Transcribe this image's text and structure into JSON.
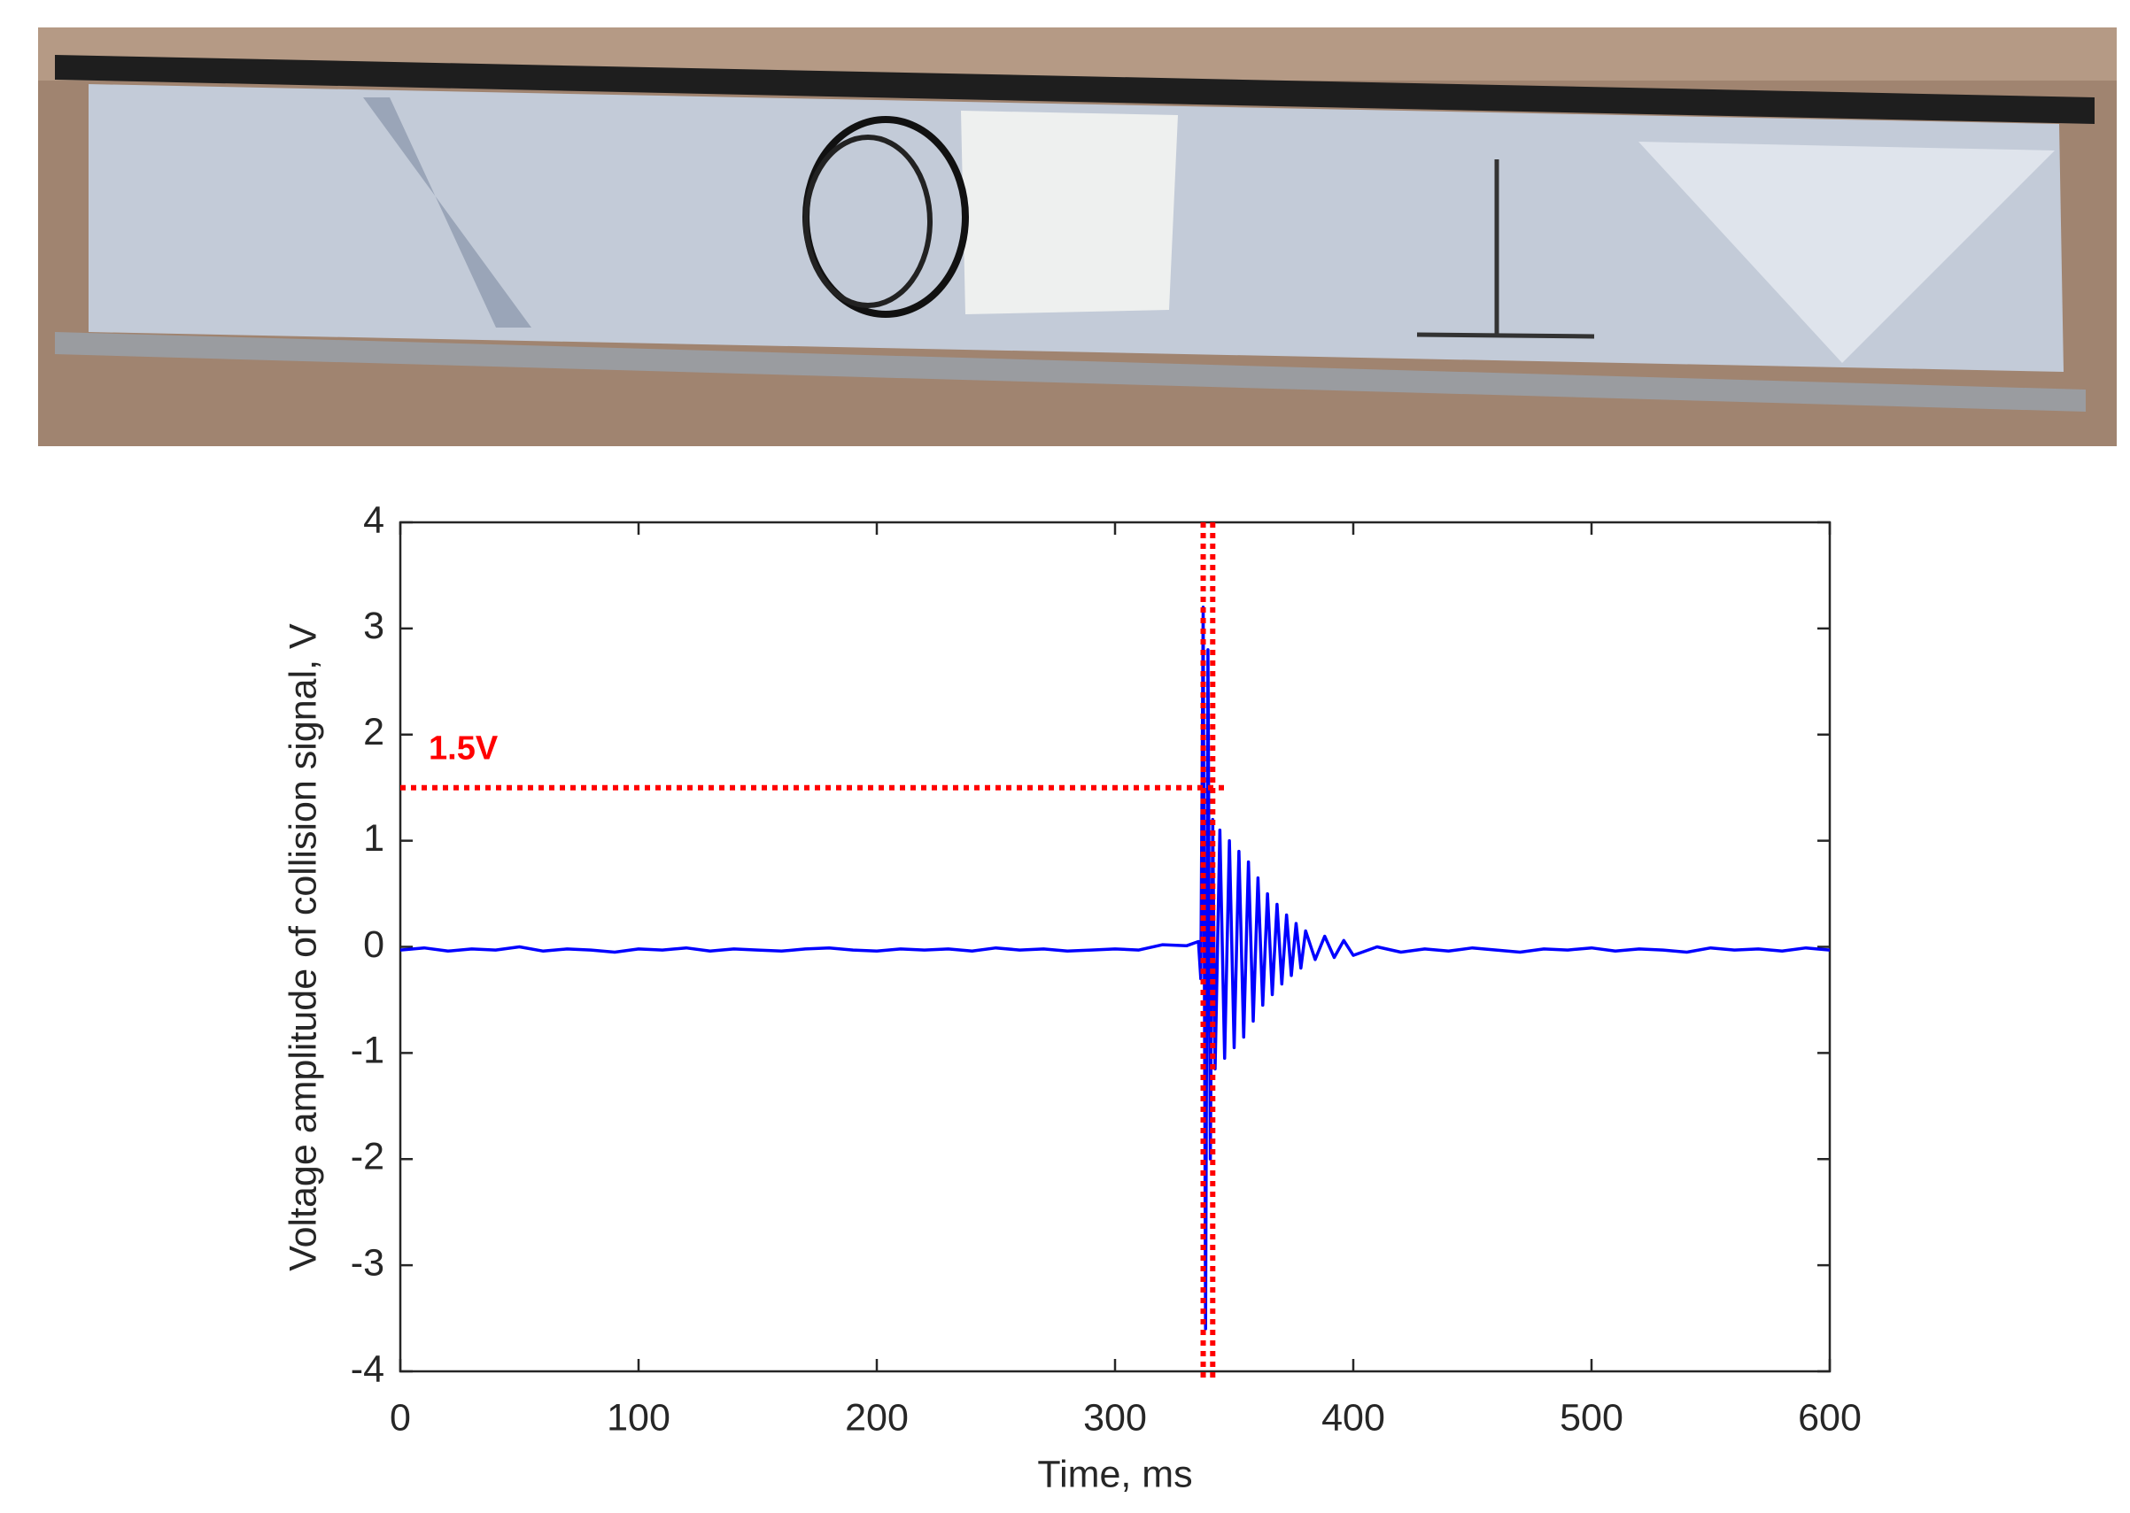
{
  "chart_data": {
    "type": "line",
    "xlabel": "Time, ms",
    "ylabel": "Voltage amplitude of  collision signal, V",
    "color": "#0000ff",
    "x": [
      0,
      10,
      20,
      30,
      40,
      50,
      60,
      70,
      80,
      90,
      100,
      110,
      120,
      130,
      140,
      150,
      160,
      170,
      180,
      190,
      200,
      210,
      220,
      230,
      240,
      250,
      260,
      270,
      280,
      290,
      300,
      310,
      320,
      330,
      335,
      336,
      337,
      338,
      339,
      340,
      341,
      342,
      344,
      346,
      348,
      350,
      352,
      354,
      356,
      358,
      360,
      362,
      364,
      366,
      368,
      370,
      372,
      374,
      376,
      378,
      380,
      384,
      388,
      392,
      396,
      400,
      410,
      420,
      430,
      440,
      450,
      460,
      470,
      480,
      490,
      500,
      510,
      520,
      530,
      540,
      550,
      560,
      570,
      580,
      590,
      600
    ],
    "values": [
      -0.03,
      -0.01,
      -0.04,
      -0.02,
      -0.03,
      0.0,
      -0.04,
      -0.02,
      -0.03,
      -0.05,
      -0.02,
      -0.03,
      -0.01,
      -0.04,
      -0.02,
      -0.03,
      -0.04,
      -0.02,
      -0.01,
      -0.03,
      -0.04,
      -0.02,
      -0.03,
      -0.02,
      -0.04,
      -0.01,
      -0.03,
      -0.02,
      -0.04,
      -0.03,
      -0.02,
      -0.03,
      0.02,
      0.01,
      0.05,
      -0.3,
      3.2,
      -3.6,
      2.8,
      -2.0,
      1.2,
      -1.15,
      1.1,
      -1.05,
      1.0,
      -0.95,
      0.9,
      -0.85,
      0.8,
      -0.7,
      0.65,
      -0.55,
      0.5,
      -0.45,
      0.4,
      -0.35,
      0.3,
      -0.27,
      0.22,
      -0.2,
      0.15,
      -0.12,
      0.1,
      -0.1,
      0.06,
      -0.08,
      0.0,
      -0.05,
      -0.02,
      -0.04,
      -0.01,
      -0.03,
      -0.05,
      -0.02,
      -0.03,
      -0.01,
      -0.04,
      -0.02,
      -0.03,
      -0.05,
      -0.01,
      -0.03,
      -0.02,
      -0.04,
      -0.01,
      -0.03
    ],
    "xlim": [
      0,
      600
    ],
    "xticks": [
      0,
      100,
      200,
      300,
      400,
      500,
      600
    ],
    "ylim": [
      -4,
      4
    ],
    "yticks": [
      -4,
      -3,
      -2,
      -1,
      0,
      1,
      2,
      3,
      4
    ],
    "threshold": {
      "value": 1.5,
      "label": "1.5V",
      "color": "#ff0000"
    },
    "markers_x": [
      337,
      341
    ]
  }
}
